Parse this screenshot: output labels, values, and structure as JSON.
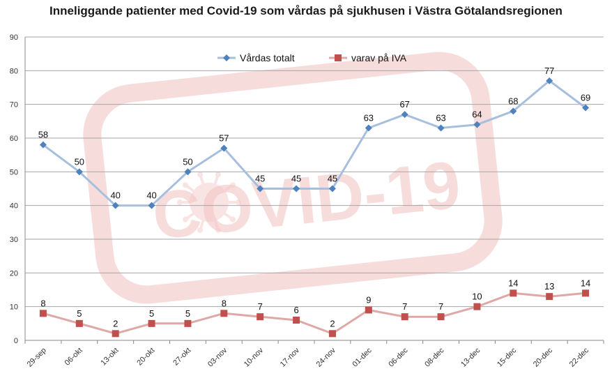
{
  "chart_data": {
    "type": "line",
    "title": "Inneliggande patienter med Covid-19 som vårdas på sjukhusen i Västra Götalandsregionen",
    "watermark": "COVID-19",
    "categories": [
      "29-sep",
      "06-okt",
      "13-okt",
      "20-okt",
      "27-okt",
      "03-nov",
      "10-nov",
      "17-nov",
      "24-nov",
      "01-dec",
      "06-dec",
      "08-dec",
      "13-dec",
      "15-dec",
      "20-dec",
      "22-dec"
    ],
    "ylim": [
      0,
      90
    ],
    "yticks": [
      0,
      10,
      20,
      30,
      40,
      50,
      60,
      70,
      80,
      90
    ],
    "grid": true,
    "legend_position": "top-center",
    "series": [
      {
        "name": "Vårdas totalt",
        "marker": "diamond",
        "color": "#4F81BD",
        "line_color": "#A7BFDE",
        "values": [
          58,
          50,
          40,
          40,
          50,
          57,
          45,
          45,
          45,
          63,
          67,
          63,
          64,
          68,
          77,
          69
        ]
      },
      {
        "name": "varav på IVA",
        "marker": "square",
        "color": "#C0504D",
        "line_color": "#DFA8A7",
        "values": [
          8,
          5,
          2,
          5,
          5,
          8,
          7,
          6,
          2,
          9,
          7,
          7,
          10,
          14,
          13,
          14
        ]
      }
    ]
  }
}
